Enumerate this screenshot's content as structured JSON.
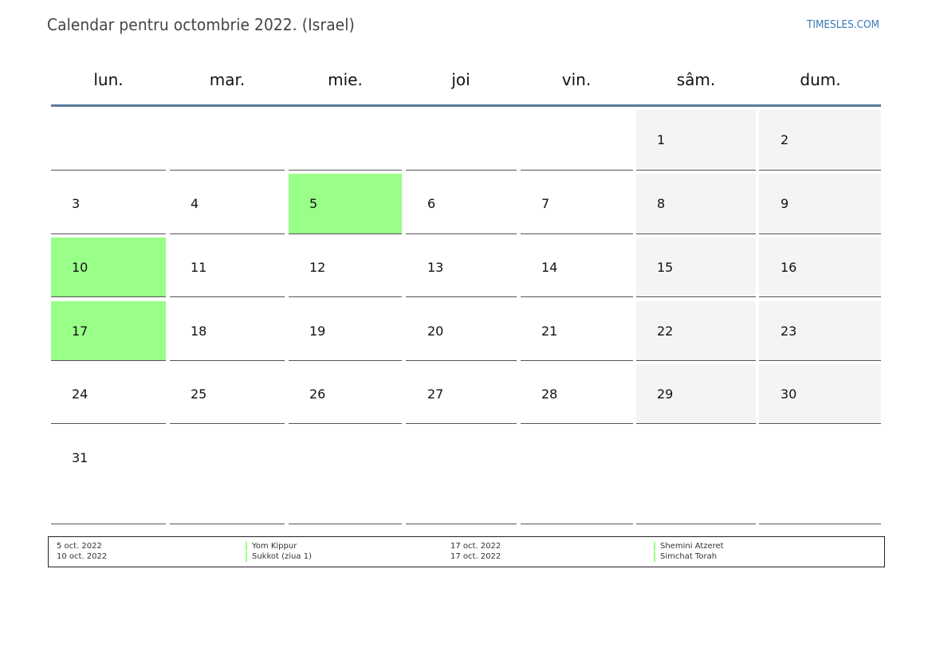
{
  "header": {
    "title": "Calendar pentru octombrie 2022. (Israel)",
    "site": "TIMESLES.COM"
  },
  "colors": {
    "holiday": "#99ff88",
    "weekend": "#f4f4f4",
    "header_rule": "#5a7a9c",
    "link": "#3b78b8"
  },
  "calendar": {
    "weekdays": [
      "lun.",
      "mar.",
      "mie.",
      "joi",
      "vin.",
      "sâm.",
      "dum."
    ],
    "weeks": [
      [
        null,
        null,
        null,
        null,
        null,
        {
          "day": "1",
          "holiday": false
        },
        {
          "day": "2",
          "holiday": false
        }
      ],
      [
        {
          "day": "3",
          "holiday": false
        },
        {
          "day": "4",
          "holiday": false
        },
        {
          "day": "5",
          "holiday": true
        },
        {
          "day": "6",
          "holiday": false
        },
        {
          "day": "7",
          "holiday": false
        },
        {
          "day": "8",
          "holiday": false
        },
        {
          "day": "9",
          "holiday": false
        }
      ],
      [
        {
          "day": "10",
          "holiday": true
        },
        {
          "day": "11",
          "holiday": false
        },
        {
          "day": "12",
          "holiday": false
        },
        {
          "day": "13",
          "holiday": false
        },
        {
          "day": "14",
          "holiday": false
        },
        {
          "day": "15",
          "holiday": false
        },
        {
          "day": "16",
          "holiday": false
        }
      ],
      [
        {
          "day": "17",
          "holiday": true
        },
        {
          "day": "18",
          "holiday": false
        },
        {
          "day": "19",
          "holiday": false
        },
        {
          "day": "20",
          "holiday": false
        },
        {
          "day": "21",
          "holiday": false
        },
        {
          "day": "22",
          "holiday": false
        },
        {
          "day": "23",
          "holiday": false
        }
      ],
      [
        {
          "day": "24",
          "holiday": false
        },
        {
          "day": "25",
          "holiday": false
        },
        {
          "day": "26",
          "holiday": false
        },
        {
          "day": "27",
          "holiday": false
        },
        {
          "day": "28",
          "holiday": false
        },
        {
          "day": "29",
          "holiday": false
        },
        {
          "day": "30",
          "holiday": false
        }
      ],
      [
        {
          "day": "31",
          "holiday": false
        },
        null,
        null,
        null,
        null,
        null,
        null
      ]
    ]
  },
  "legend": {
    "entries": [
      {
        "date": "5 oct. 2022",
        "name": "Yom Kippur"
      },
      {
        "date": "10 oct. 2022",
        "name": "Sukkot (ziua 1)"
      },
      {
        "date": "17 oct. 2022",
        "name": "Shemini Atzeret"
      },
      {
        "date": "17 oct. 2022",
        "name": "Simchat Torah"
      }
    ]
  }
}
